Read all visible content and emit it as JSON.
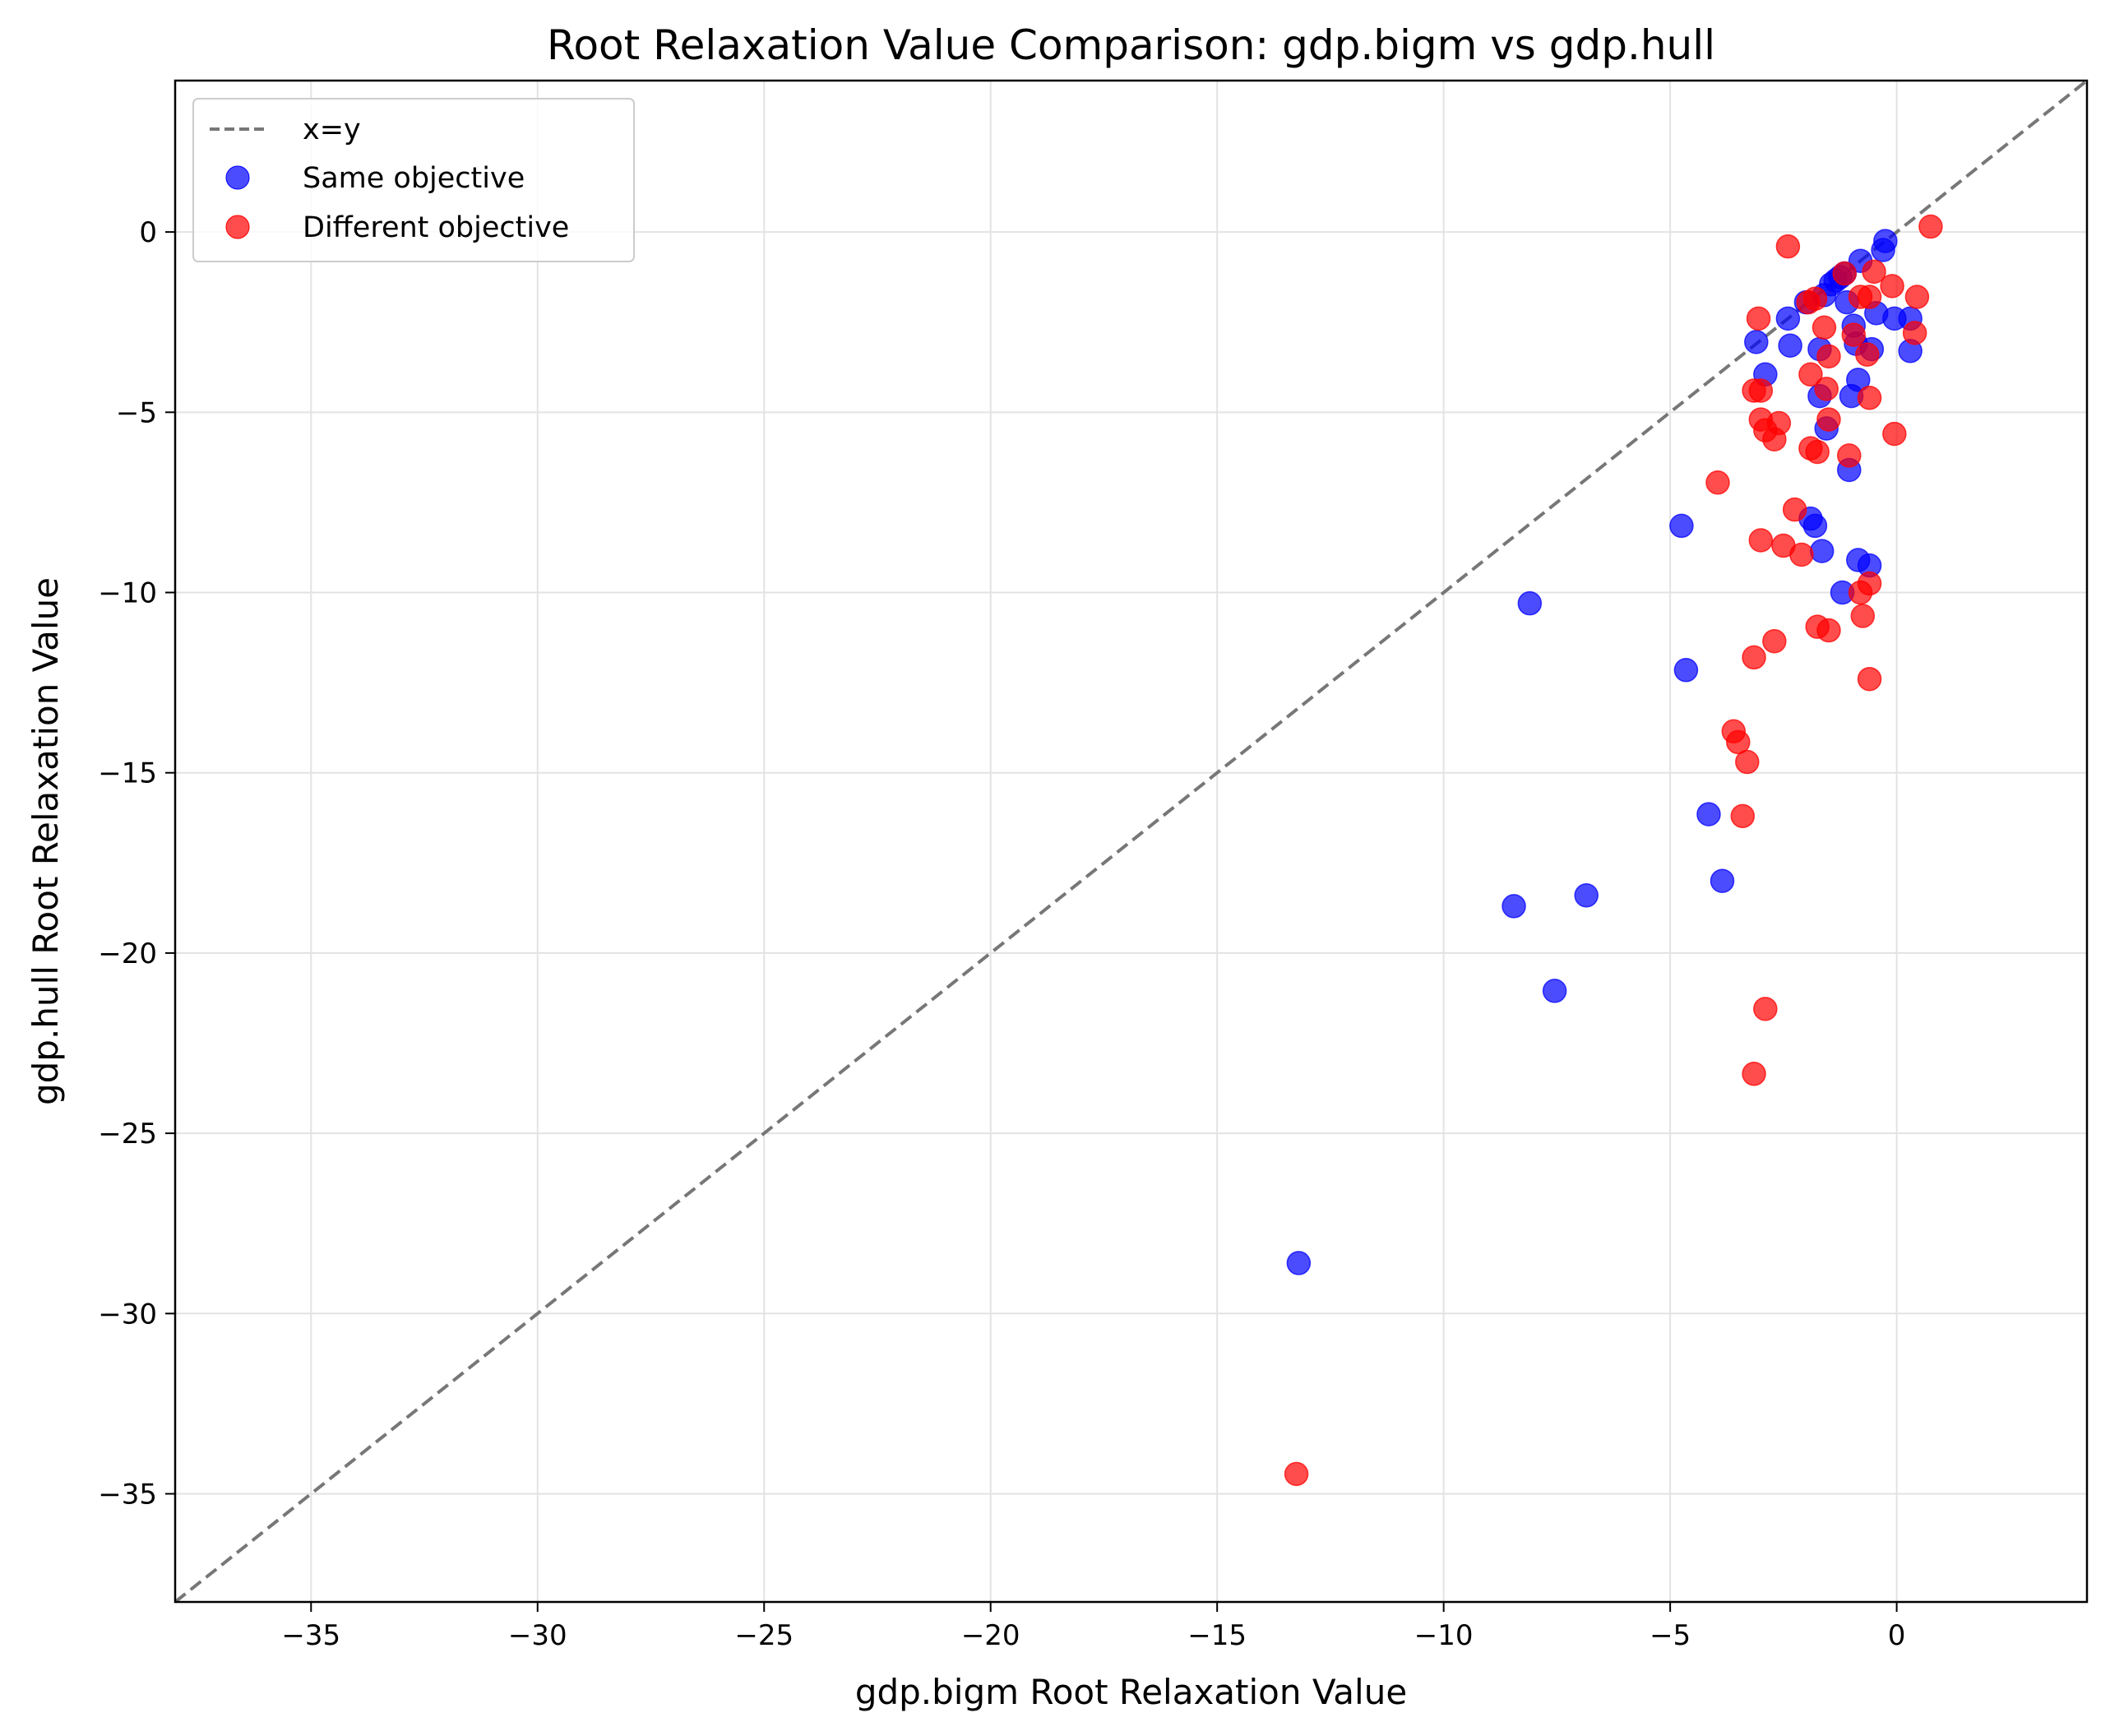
{
  "chart_data": {
    "type": "scatter",
    "title": "Root Relaxation Value Comparison: gdp.bigm vs gdp.hull",
    "xlabel": "gdp.bigm Root Relaxation Value",
    "ylabel": "gdp.hull Root Relaxation Value",
    "xlim": [
      -38,
      4.2
    ],
    "ylim": [
      -38,
      4.2
    ],
    "xticks": [
      -35,
      -30,
      -25,
      -20,
      -15,
      -10,
      -5,
      0
    ],
    "yticks": [
      -35,
      -30,
      -25,
      -20,
      -15,
      -10,
      -5,
      0
    ],
    "grid": true,
    "legend_position": "upper-left",
    "reference_line": {
      "label": "x=y",
      "color": "#777777",
      "style": "dashed"
    },
    "series": [
      {
        "name": "Same objective",
        "color": "#0000ff",
        "points": [
          [
            -13.2,
            -28.6
          ],
          [
            -8.1,
            -10.3
          ],
          [
            -8.45,
            -18.7
          ],
          [
            -7.55,
            -21.05
          ],
          [
            -6.85,
            -18.4
          ],
          [
            -4.75,
            -8.15
          ],
          [
            -4.65,
            -12.15
          ],
          [
            -4.15,
            -16.15
          ],
          [
            -3.85,
            -18.0
          ],
          [
            -3.1,
            -3.05
          ],
          [
            -2.9,
            -3.95
          ],
          [
            -2.4,
            -2.4
          ],
          [
            -2.35,
            -3.15
          ],
          [
            -2.0,
            -1.95
          ],
          [
            -1.9,
            -7.95
          ],
          [
            -1.8,
            -8.15
          ],
          [
            -1.7,
            -4.55
          ],
          [
            -1.7,
            -3.25
          ],
          [
            -1.65,
            -8.85
          ],
          [
            -1.6,
            -1.75
          ],
          [
            -1.55,
            -5.45
          ],
          [
            -1.45,
            -1.45
          ],
          [
            -1.35,
            -1.35
          ],
          [
            -1.25,
            -1.25
          ],
          [
            -1.2,
            -10.0
          ],
          [
            -1.15,
            -1.15
          ],
          [
            -1.1,
            -1.95
          ],
          [
            -1.05,
            -6.6
          ],
          [
            -1.0,
            -4.55
          ],
          [
            -0.95,
            -2.6
          ],
          [
            -0.9,
            -3.1
          ],
          [
            -0.85,
            -9.1
          ],
          [
            -0.85,
            -4.1
          ],
          [
            -0.8,
            -0.8
          ],
          [
            -0.6,
            -9.25
          ],
          [
            -0.55,
            -3.25
          ],
          [
            -0.45,
            -2.25
          ],
          [
            -0.3,
            -0.5
          ],
          [
            -0.25,
            -0.25
          ],
          [
            -0.05,
            -2.4
          ],
          [
            0.3,
            -2.4
          ],
          [
            0.3,
            -3.3
          ]
        ]
      },
      {
        "name": "Different objective",
        "color": "#ff0000",
        "points": [
          [
            -13.25,
            -34.45
          ],
          [
            -3.95,
            -6.95
          ],
          [
            -3.6,
            -13.85
          ],
          [
            -3.5,
            -14.15
          ],
          [
            -3.4,
            -16.2
          ],
          [
            -3.3,
            -14.7
          ],
          [
            -3.15,
            -4.4
          ],
          [
            -3.15,
            -11.8
          ],
          [
            -3.15,
            -23.35
          ],
          [
            -3.05,
            -2.4
          ],
          [
            -3.0,
            -4.4
          ],
          [
            -3.0,
            -5.2
          ],
          [
            -3.0,
            -8.55
          ],
          [
            -2.9,
            -5.5
          ],
          [
            -2.9,
            -21.55
          ],
          [
            -2.7,
            -5.75
          ],
          [
            -2.7,
            -11.35
          ],
          [
            -2.6,
            -5.3
          ],
          [
            -2.5,
            -8.7
          ],
          [
            -2.4,
            -0.4
          ],
          [
            -2.25,
            -7.7
          ],
          [
            -2.1,
            -8.95
          ],
          [
            -1.95,
            -1.95
          ],
          [
            -1.9,
            -3.95
          ],
          [
            -1.9,
            -6.0
          ],
          [
            -1.8,
            -1.85
          ],
          [
            -1.75,
            -6.1
          ],
          [
            -1.75,
            -10.95
          ],
          [
            -1.6,
            -2.65
          ],
          [
            -1.55,
            -4.35
          ],
          [
            -1.5,
            -5.2
          ],
          [
            -1.5,
            -3.45
          ],
          [
            -1.5,
            -11.05
          ],
          [
            -1.15,
            -1.15
          ],
          [
            -1.05,
            -6.2
          ],
          [
            -0.95,
            -2.85
          ],
          [
            -0.8,
            -1.8
          ],
          [
            -0.8,
            -10.0
          ],
          [
            -0.75,
            -10.65
          ],
          [
            -0.65,
            -3.4
          ],
          [
            -0.6,
            -1.8
          ],
          [
            -0.6,
            -4.6
          ],
          [
            -0.6,
            -9.75
          ],
          [
            -0.6,
            -12.4
          ],
          [
            -0.5,
            -1.1
          ],
          [
            -0.1,
            -1.5
          ],
          [
            -0.05,
            -5.6
          ],
          [
            0.4,
            -2.8
          ],
          [
            0.45,
            -1.8
          ],
          [
            0.75,
            0.15
          ]
        ]
      }
    ]
  }
}
